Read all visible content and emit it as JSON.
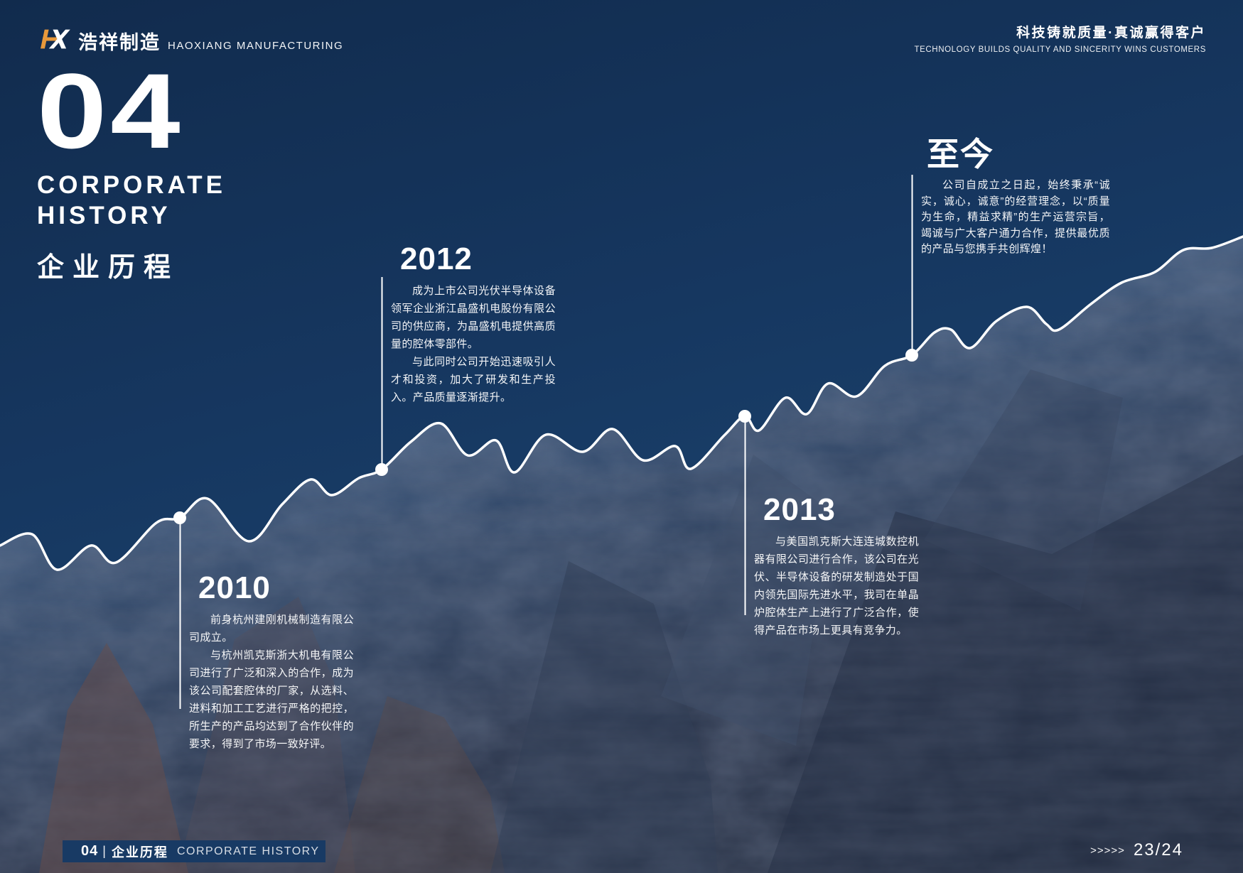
{
  "colors": {
    "background_navy": "#16375E",
    "accent_orange": "#E8993B",
    "line_white": "#FFFFFF",
    "footer_bar_navy": "#183A64"
  },
  "header": {
    "logo_mark": "HX",
    "brand_cn": "浩祥制造",
    "brand_en": "HAOXIANG MANUFACTURING",
    "slogan_cn": "科技铸就质量·真诚赢得客户",
    "slogan_en": "TECHNOLOGY BUILDS QUALITY AND SINCERITY WINS CUSTOMERS"
  },
  "section": {
    "number": "04",
    "title_en_line1": "CORPORATE",
    "title_en_line2": "HISTORY",
    "title_cn": "企业历程"
  },
  "timeline": {
    "milestones": [
      {
        "year": "2010",
        "paragraphs": [
          "前身杭州建刚机械制造有限公司成立。",
          "与杭州凯克斯浙大机电有限公司进行了广泛和深入的合作，成为该公司配套腔体的厂家，从选料、进料和加工工艺进行严格的把控，所生产的产品均达到了合作伙伴的要求，得到了市场一致好评。"
        ]
      },
      {
        "year": "2012",
        "paragraphs": [
          "成为上市公司光伏半导体设备领军企业浙江晶盛机电股份有限公司的供应商，为晶盛机电提供高质量的腔体零部件。",
          "与此同时公司开始迅速吸引人才和投资，加大了研发和生产投入。产品质量逐渐提升。"
        ]
      },
      {
        "year": "2013",
        "paragraphs": [
          "与美国凯克斯大连连城数控机器有限公司进行合作，该公司在光伏、半导体设备的研发制造处于国内领先国际先进水平，我司在单晶炉腔体生产上进行了广泛合作，使得产品在市场上更具有竞争力。"
        ]
      },
      {
        "year": "至今",
        "paragraphs": [
          "公司自成立之日起，始终秉承“诚实，诚心，诚意”的经营理念，以“质量为生命，精益求精”的生产运营宗旨，竭诚与广大客户通力合作，提供最优质的产品与您携手共创辉煌！"
        ]
      }
    ]
  },
  "footer": {
    "page_num": "04",
    "divider": "|",
    "footer_cn": "企业历程",
    "footer_en": "CORPORATE HISTORY",
    "arrows": ">>>>>",
    "page_indicator": "23/24"
  }
}
